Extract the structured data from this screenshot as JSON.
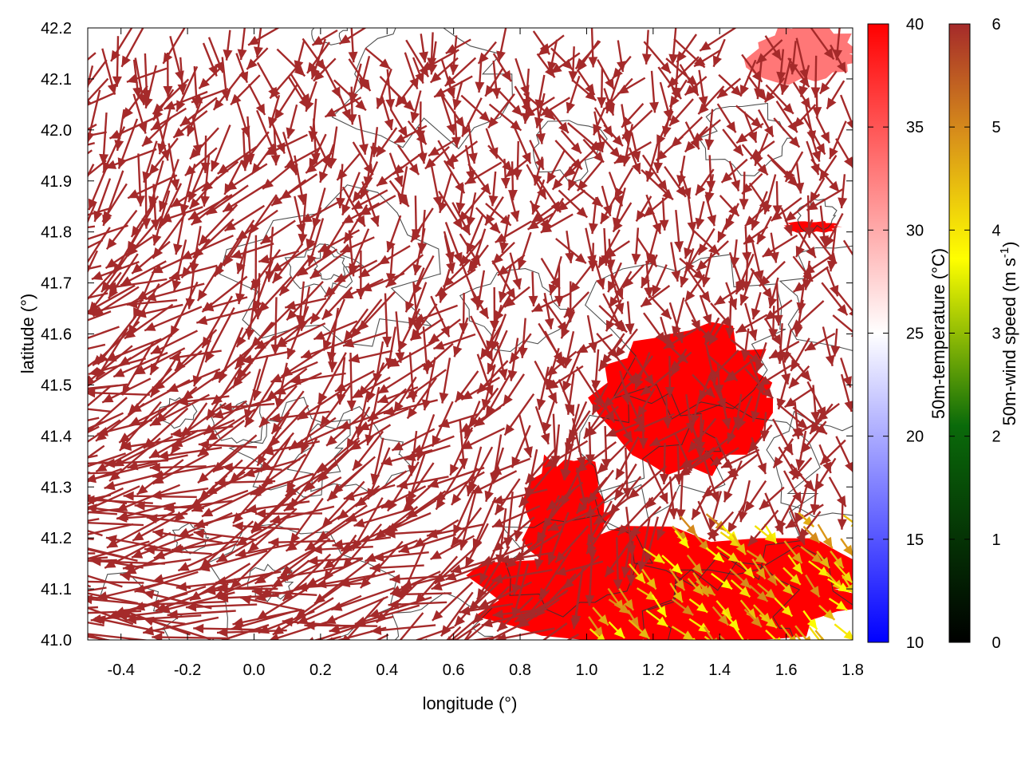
{
  "chart_data": {
    "type": "vector-field-map",
    "xlabel": "longitude (°)",
    "ylabel": "latitude (°)",
    "xlim": [
      -0.5,
      1.8
    ],
    "ylim": [
      41.0,
      42.2
    ],
    "x_ticks": [
      "-0.4",
      "-0.2",
      "0.0",
      "0.2",
      "0.4",
      "0.6",
      "0.8",
      "1.0",
      "1.2",
      "1.4",
      "1.6",
      "1.8"
    ],
    "y_ticks": [
      "41.0",
      "41.1",
      "41.2",
      "41.3",
      "41.4",
      "41.5",
      "41.6",
      "41.7",
      "41.8",
      "41.9",
      "42.0",
      "42.1",
      "42.2"
    ],
    "background_field": {
      "label": "50m-temperature (°C)",
      "range": [
        10,
        40
      ],
      "ticks": [
        "10",
        "15",
        "20",
        "25",
        "30",
        "35",
        "40"
      ],
      "colors": [
        "#0000ff",
        "#ffffff",
        "#ff0000"
      ],
      "hot_regions": [
        {
          "lon": [
            0.72,
            1.8
          ],
          "lat": [
            41.0,
            41.2
          ],
          "value": 40
        },
        {
          "lon": [
            0.82,
            1.05
          ],
          "lat": [
            41.15,
            41.35
          ],
          "value": 40
        },
        {
          "lon": [
            1.07,
            1.55
          ],
          "lat": [
            41.35,
            41.6
          ],
          "value": 40
        },
        {
          "lon": [
            1.5,
            1.8
          ],
          "lat": [
            42.1,
            42.2
          ],
          "value": 33
        },
        {
          "lon": [
            1.6,
            1.75
          ],
          "lat": [
            41.8,
            41.82
          ],
          "value": 40
        }
      ]
    },
    "vectors": {
      "label": "50m-wind speed (m s-1)",
      "label_parts": [
        "50m-wind speed (m s",
        "-1",
        ")"
      ],
      "range": [
        0,
        6
      ],
      "ticks": [
        "0",
        "1",
        "2",
        "3",
        "4",
        "5",
        "6"
      ],
      "colors": [
        "#000000",
        "#006400",
        "#ffff00",
        "#ff9900",
        "#a52a2a"
      ],
      "dominant_speed": 6,
      "dominant_direction": "westerly, turning northerly near the coast",
      "slow_region": {
        "lon": [
          1.0,
          1.8
        ],
        "lat": [
          41.0,
          41.25
        ],
        "speed": 4.3,
        "direction": "south-westerly"
      }
    },
    "contours": {
      "color": "#333333",
      "note": "topography"
    }
  }
}
